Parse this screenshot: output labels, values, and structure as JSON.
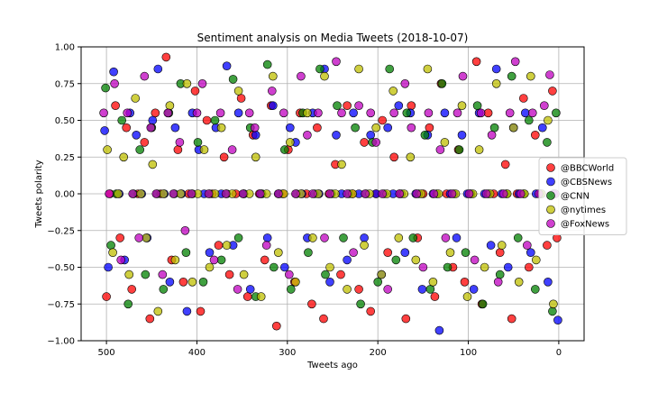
{
  "chart_data": {
    "type": "scatter",
    "title": "Sentiment analysis on Media Tweets (2018-10-07)",
    "xlabel": "Tweets ago",
    "ylabel": "Tweets polarity",
    "xlim": [
      528,
      -28
    ],
    "ylim": [
      -1.0,
      1.0
    ],
    "x_reversed": true,
    "grid": true,
    "legend_position": "center-right",
    "x_ticks": [
      500,
      400,
      300,
      200,
      100,
      0
    ],
    "x_tick_labels": [
      "500",
      "400",
      "300",
      "200",
      "100",
      "0"
    ],
    "y_ticks": [
      1.0,
      0.75,
      0.5,
      0.25,
      0.0,
      -0.25,
      -0.5,
      -0.75,
      -1.0
    ],
    "y_tick_labels": [
      "1.00",
      "0.75",
      "0.50",
      "0.25",
      "0.00",
      "−0.25",
      "−0.50",
      "−0.75",
      "−1.00"
    ],
    "series": [
      {
        "name": "@BBCWorld",
        "color": "#ff0000",
        "x": [
          500,
          496,
          490,
          485,
          478,
          472,
          465,
          458,
          452,
          446,
          440,
          434,
          428,
          421,
          415,
          409,
          402,
          396,
          389,
          383,
          376,
          370,
          364,
          357,
          351,
          344,
          338,
          331,
          325,
          318,
          312,
          305,
          299,
          292,
          286,
          279,
          273,
          267,
          260,
          254,
          247,
          241,
          234,
          228,
          221,
          215,
          208,
          202,
          195,
          189,
          182,
          176,
          169,
          163,
          156,
          150,
          143,
          137,
          130,
          124,
          117,
          111,
          104,
          98,
          91,
          85,
          78,
          72,
          65,
          59,
          52,
          46,
          39,
          33,
          26,
          20,
          13,
          7,
          2
        ],
        "y": [
          -0.7,
          0.0,
          0.6,
          -0.3,
          0.45,
          -0.65,
          0.0,
          0.35,
          -0.85,
          0.55,
          0.0,
          0.93,
          -0.45,
          0.3,
          -0.6,
          0.0,
          0.7,
          -0.8,
          0.5,
          0.0,
          -0.35,
          0.25,
          -0.55,
          0.0,
          0.65,
          -0.7,
          0.4,
          0.0,
          -0.45,
          0.6,
          -0.9,
          0.0,
          0.3,
          -0.6,
          0.55,
          0.0,
          -0.75,
          0.45,
          -0.85,
          0.0,
          0.2,
          -0.55,
          0.6,
          0.0,
          -0.65,
          0.35,
          -0.8,
          0.0,
          0.5,
          -0.4,
          0.25,
          0.0,
          -0.85,
          0.6,
          -0.3,
          0.0,
          0.45,
          -0.7,
          0.75,
          0.0,
          -0.5,
          0.3,
          -0.6,
          0.0,
          0.9,
          -0.75,
          0.55,
          0.0,
          -0.4,
          0.2,
          -0.85,
          0.0,
          0.65,
          -0.5,
          0.4,
          0.0,
          -0.35,
          0.7,
          -0.3
        ]
      },
      {
        "name": "@CBSNews",
        "color": "#0000ff",
        "x": [
          502,
          498,
          492,
          486,
          480,
          474,
          467,
          461,
          455,
          449,
          443,
          436,
          430,
          424,
          417,
          411,
          405,
          398,
          392,
          386,
          379,
          373,
          367,
          360,
          354,
          348,
          341,
          335,
          329,
          322,
          316,
          310,
          303,
          297,
          291,
          284,
          278,
          272,
          265,
          259,
          253,
          246,
          240,
          234,
          227,
          221,
          215,
          208,
          202,
          196,
          189,
          183,
          177,
          170,
          164,
          158,
          151,
          145,
          139,
          132,
          126,
          120,
          113,
          107,
          101,
          94,
          88,
          82,
          75,
          69,
          63,
          56,
          50,
          44,
          37,
          31,
          25,
          18,
          12,
          6,
          1
        ],
        "y": [
          0.43,
          -0.5,
          0.83,
          0.0,
          -0.45,
          0.55,
          0.4,
          0.0,
          -0.3,
          0.5,
          0.85,
          0.0,
          -0.6,
          0.45,
          0.0,
          -0.8,
          0.55,
          0.3,
          0.0,
          -0.4,
          0.45,
          0.0,
          0.87,
          -0.35,
          0.55,
          0.0,
          -0.65,
          0.4,
          0.0,
          -0.3,
          0.6,
          0.0,
          -0.5,
          0.45,
          0.35,
          0.0,
          -0.3,
          0.55,
          0.0,
          0.85,
          -0.6,
          0.4,
          0.0,
          -0.45,
          0.55,
          0.0,
          -0.3,
          0.4,
          0.0,
          -0.55,
          0.45,
          0.0,
          0.6,
          -0.4,
          0.55,
          0.0,
          -0.65,
          0.4,
          0.0,
          -0.93,
          0.55,
          0.0,
          -0.3,
          0.4,
          0.0,
          -0.65,
          0.55,
          0.0,
          -0.35,
          0.85,
          0.0,
          -0.5,
          0.45,
          0.0,
          0.55,
          -0.4,
          0.0,
          0.45,
          -0.6,
          0.0,
          -0.86
        ]
      },
      {
        "name": "@CNN",
        "color": "#008000",
        "x": [
          501,
          495,
          489,
          483,
          476,
          470,
          463,
          457,
          450,
          444,
          437,
          431,
          425,
          418,
          412,
          405,
          399,
          393,
          386,
          380,
          373,
          367,
          360,
          354,
          348,
          341,
          335,
          328,
          322,
          315,
          309,
          303,
          296,
          290,
          283,
          277,
          270,
          264,
          258,
          251,
          245,
          238,
          232,
          225,
          219,
          213,
          206,
          200,
          193,
          187,
          180,
          174,
          168,
          161,
          155,
          148,
          142,
          135,
          129,
          123,
          116,
          110,
          103,
          97,
          90,
          84,
          78,
          71,
          65,
          58,
          52,
          45,
          39,
          33,
          26,
          20,
          13,
          7,
          3
        ],
        "y": [
          0.72,
          -0.35,
          0.0,
          0.5,
          -0.75,
          0.0,
          0.3,
          -0.55,
          0.45,
          0.0,
          -0.65,
          0.55,
          0.0,
          0.75,
          -0.4,
          0.0,
          0.35,
          -0.6,
          0.0,
          0.5,
          -0.45,
          0.0,
          0.78,
          -0.3,
          0.0,
          0.45,
          -0.7,
          0.0,
          0.88,
          -0.5,
          0.0,
          0.3,
          -0.65,
          0.0,
          0.55,
          -0.4,
          0.0,
          0.85,
          -0.55,
          0.0,
          0.6,
          -0.3,
          0.0,
          0.45,
          -0.75,
          0.0,
          0.35,
          -0.6,
          0.0,
          0.85,
          -0.45,
          0.0,
          0.55,
          -0.3,
          0.0,
          0.4,
          -0.65,
          0.0,
          0.75,
          -0.5,
          0.0,
          0.3,
          -0.4,
          0.0,
          0.6,
          -0.75,
          0.0,
          0.45,
          -0.55,
          0.0,
          0.8,
          -0.3,
          0.0,
          0.5,
          -0.65,
          0.0,
          0.35,
          -0.8,
          0.55
        ]
      },
      {
        "name": "@nytimes",
        "color": "#bfbf00",
        "x": [
          499,
          493,
          487,
          481,
          475,
          468,
          462,
          456,
          449,
          443,
          437,
          430,
          424,
          418,
          411,
          405,
          399,
          392,
          386,
          380,
          373,
          367,
          361,
          354,
          348,
          342,
          335,
          329,
          323,
          316,
          310,
          304,
          297,
          291,
          285,
          278,
          272,
          266,
          259,
          253,
          247,
          240,
          234,
          228,
          221,
          215,
          209,
          202,
          196,
          190,
          183,
          177,
          171,
          164,
          158,
          152,
          145,
          139,
          133,
          126,
          120,
          114,
          107,
          101,
          95,
          88,
          82,
          76,
          69,
          63,
          57,
          50,
          44,
          38,
          31,
          25,
          19,
          12,
          6
        ],
        "y": [
          0.3,
          -0.4,
          0.0,
          0.25,
          -0.55,
          0.65,
          0.0,
          -0.3,
          0.2,
          -0.8,
          0.0,
          0.6,
          -0.45,
          0.0,
          0.75,
          -0.6,
          0.0,
          0.3,
          -0.5,
          0.0,
          0.45,
          -0.35,
          0.0,
          0.7,
          -0.55,
          0.0,
          0.25,
          -0.7,
          0.0,
          0.8,
          -0.4,
          0.0,
          0.35,
          -0.6,
          0.0,
          0.55,
          -0.3,
          0.0,
          0.8,
          -0.5,
          0.0,
          0.2,
          -0.65,
          0.0,
          0.85,
          -0.35,
          0.0,
          0.45,
          -0.55,
          0.0,
          0.7,
          -0.3,
          0.0,
          0.25,
          -0.45,
          0.0,
          0.85,
          -0.6,
          0.0,
          0.35,
          -0.4,
          0.0,
          0.6,
          -0.7,
          0.0,
          0.3,
          -0.5,
          0.0,
          0.75,
          -0.35,
          0.0,
          0.45,
          -0.6,
          0.0,
          0.8,
          -0.45,
          0.0,
          0.5,
          -0.75
        ]
      },
      {
        "name": "@FoxNews",
        "color": "#bf00bf",
        "x": [
          503,
          497,
          491,
          484,
          477,
          471,
          464,
          458,
          451,
          445,
          438,
          432,
          426,
          419,
          413,
          406,
          400,
          394,
          387,
          381,
          374,
          368,
          361,
          355,
          349,
          342,
          336,
          330,
          323,
          317,
          310,
          304,
          298,
          291,
          285,
          278,
          272,
          266,
          259,
          253,
          246,
          240,
          234,
          227,
          221,
          214,
          208,
          202,
          195,
          189,
          182,
          176,
          170,
          163,
          157,
          150,
          144,
          138,
          131,
          125,
          118,
          112,
          106,
          99,
          93,
          86,
          80,
          74,
          67,
          61,
          54,
          48,
          42,
          35,
          29,
          22,
          16,
          10,
          4
        ],
        "y": [
          0.55,
          0.0,
          0.75,
          -0.45,
          0.55,
          0.0,
          -0.3,
          0.8,
          0.45,
          0.0,
          -0.55,
          0.55,
          0.0,
          0.35,
          -0.25,
          0.0,
          0.55,
          0.75,
          0.0,
          -0.45,
          0.55,
          0.0,
          0.3,
          -0.65,
          0.0,
          0.55,
          0.45,
          0.0,
          -0.35,
          0.7,
          0.0,
          0.55,
          -0.55,
          0.0,
          0.8,
          0.4,
          0.0,
          0.55,
          -0.3,
          0.0,
          0.9,
          0.55,
          0.0,
          -0.4,
          0.6,
          0.0,
          0.55,
          0.35,
          0.0,
          -0.65,
          0.55,
          0.0,
          0.75,
          0.45,
          0.0,
          -0.5,
          0.55,
          0.0,
          0.3,
          -0.3,
          0.0,
          0.55,
          0.8,
          0.0,
          -0.45,
          0.55,
          0.0,
          0.4,
          -0.6,
          0.0,
          0.55,
          0.9,
          0.0,
          -0.35,
          0.55,
          0.0,
          0.6,
          0.81,
          0.0
        ]
      }
    ]
  }
}
